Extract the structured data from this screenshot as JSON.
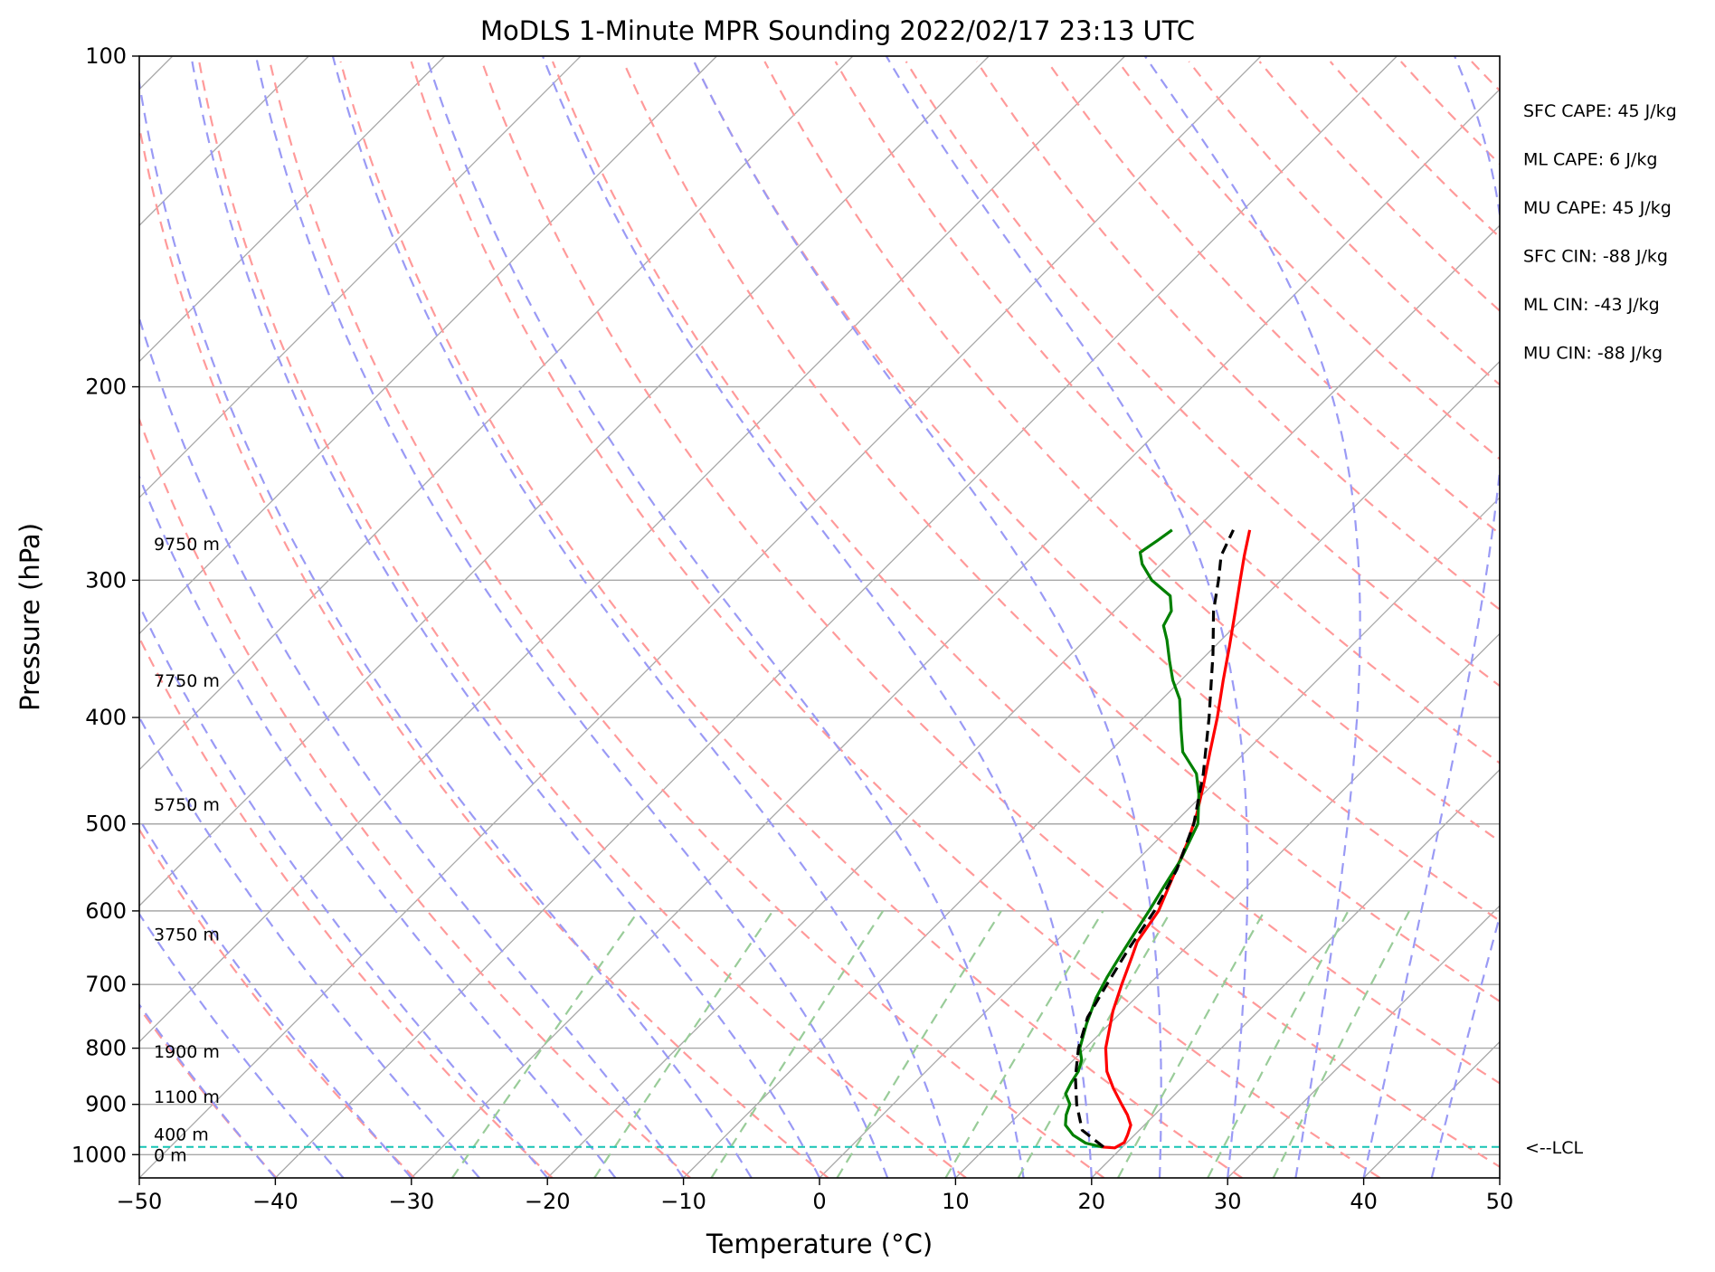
{
  "chart_data": {
    "type": "line",
    "title": "MoDLS 1-Minute MPR Sounding 2022/02/17 23:13 UTC",
    "xlabel": "Temperature (°C)",
    "ylabel": "Pressure (hPa)",
    "xlim": [
      -50,
      50
    ],
    "ylim": [
      1050,
      100
    ],
    "yscale": "log",
    "skew": true,
    "grid": true,
    "x_ticks": [
      {
        "value": -50,
        "label": "−50"
      },
      {
        "value": -40,
        "label": "−40"
      },
      {
        "value": -30,
        "label": "−30"
      },
      {
        "value": -20,
        "label": "−20"
      },
      {
        "value": -10,
        "label": "−10"
      },
      {
        "value": 0,
        "label": "0"
      },
      {
        "value": 10,
        "label": "10"
      },
      {
        "value": 20,
        "label": "20"
      },
      {
        "value": 30,
        "label": "30"
      },
      {
        "value": 40,
        "label": "40"
      },
      {
        "value": 50,
        "label": "50"
      }
    ],
    "y_ticks": [
      {
        "value": 100,
        "label": "100"
      },
      {
        "value": 200,
        "label": "200"
      },
      {
        "value": 300,
        "label": "300"
      },
      {
        "value": 400,
        "label": "400"
      },
      {
        "value": 500,
        "label": "500"
      },
      {
        "value": 600,
        "label": "600"
      },
      {
        "value": 700,
        "label": "700"
      },
      {
        "value": 800,
        "label": "800"
      },
      {
        "value": 900,
        "label": "900"
      },
      {
        "value": 1000,
        "label": "1000"
      }
    ],
    "height_labels": [
      {
        "pressure": 1000,
        "label": "0 m"
      },
      {
        "pressure": 958,
        "label": "400 m"
      },
      {
        "pressure": 885,
        "label": "1100 m"
      },
      {
        "pressure": 805,
        "label": "1900 m"
      },
      {
        "pressure": 630,
        "label": "3750 m"
      },
      {
        "pressure": 480,
        "label": "5750 m"
      },
      {
        "pressure": 370,
        "label": "7750 m"
      },
      {
        "pressure": 278,
        "label": "9750 m"
      }
    ],
    "series": [
      {
        "key": "temperature",
        "color": "#ff0000",
        "points": [
          [
            984,
            18.5
          ],
          [
            986,
            19.5
          ],
          [
            975,
            19.8
          ],
          [
            960,
            19.5
          ],
          [
            940,
            19.0
          ],
          [
            920,
            18.0
          ],
          [
            900,
            16.8
          ],
          [
            870,
            15.0
          ],
          [
            840,
            13.3
          ],
          [
            800,
            11.5
          ],
          [
            740,
            9.3
          ],
          [
            700,
            8.0
          ],
          [
            660,
            6.7
          ],
          [
            640,
            6.0
          ],
          [
            600,
            5.3
          ],
          [
            560,
            3.9
          ],
          [
            520,
            2.4
          ],
          [
            490,
            1.0
          ],
          [
            460,
            -0.7
          ],
          [
            430,
            -2.6
          ],
          [
            400,
            -4.6
          ],
          [
            370,
            -6.9
          ],
          [
            345,
            -8.9
          ],
          [
            320,
            -11.1
          ],
          [
            300,
            -13.0
          ],
          [
            285,
            -14.5
          ],
          [
            270,
            -16.0
          ]
        ]
      },
      {
        "key": "dewpoint",
        "color": "#008000",
        "points": [
          [
            984,
            18.5
          ],
          [
            976,
            17.0
          ],
          [
            960,
            15.5
          ],
          [
            940,
            14.2
          ],
          [
            920,
            13.5
          ],
          [
            900,
            13.0
          ],
          [
            880,
            11.9
          ],
          [
            860,
            11.5
          ],
          [
            840,
            11.2
          ],
          [
            820,
            10.6
          ],
          [
            800,
            9.6
          ],
          [
            760,
            8.3
          ],
          [
            720,
            7.1
          ],
          [
            690,
            6.4
          ],
          [
            660,
            5.8
          ],
          [
            630,
            5.2
          ],
          [
            600,
            4.6
          ],
          [
            570,
            3.9
          ],
          [
            540,
            3.2
          ],
          [
            500,
            1.8
          ],
          [
            470,
            -0.3
          ],
          [
            450,
            -2.0
          ],
          [
            430,
            -4.6
          ],
          [
            410,
            -6.4
          ],
          [
            385,
            -8.7
          ],
          [
            370,
            -10.6
          ],
          [
            355,
            -12.3
          ],
          [
            340,
            -14.0
          ],
          [
            330,
            -15.3
          ],
          [
            320,
            -15.8
          ],
          [
            310,
            -17.0
          ],
          [
            300,
            -19.5
          ],
          [
            290,
            -21.4
          ],
          [
            283,
            -22.4
          ],
          [
            276,
            -22.0
          ],
          [
            270,
            -21.7
          ]
        ]
      },
      {
        "key": "parcel",
        "color": "#000000",
        "dashed": true,
        "points": [
          [
            984,
            18.6
          ],
          [
            950,
            15.8
          ],
          [
            900,
            13.5
          ],
          [
            850,
            11.4
          ],
          [
            800,
            9.5
          ],
          [
            750,
            7.9
          ],
          [
            700,
            6.9
          ],
          [
            650,
            5.9
          ],
          [
            600,
            5.0
          ],
          [
            550,
            3.6
          ],
          [
            500,
            1.5
          ],
          [
            450,
            -1.5
          ],
          [
            400,
            -5.2
          ],
          [
            350,
            -9.6
          ],
          [
            320,
            -12.7
          ],
          [
            300,
            -14.6
          ],
          [
            285,
            -16.2
          ],
          [
            270,
            -17.2
          ]
        ]
      }
    ],
    "lcl": {
      "pressure": 984,
      "label": "<--LCL"
    },
    "stats": [
      "SFC CAPE: 45 J/kg",
      "ML CAPE: 6 J/kg",
      "MU CAPE: 45 J/kg",
      "SFC CIN: -88 J/kg",
      "ML CIN: -43 J/kg",
      "MU CIN: -88 J/kg"
    ],
    "colors": {
      "isotherm": "#a8a8a8",
      "isobar": "#a8a8a8",
      "dry_adiabat": "#ff9a9a",
      "moist_adiabat": "#9a9af5",
      "mixing_ratio": "#99cc99",
      "lcl": "#17c4b4"
    }
  }
}
